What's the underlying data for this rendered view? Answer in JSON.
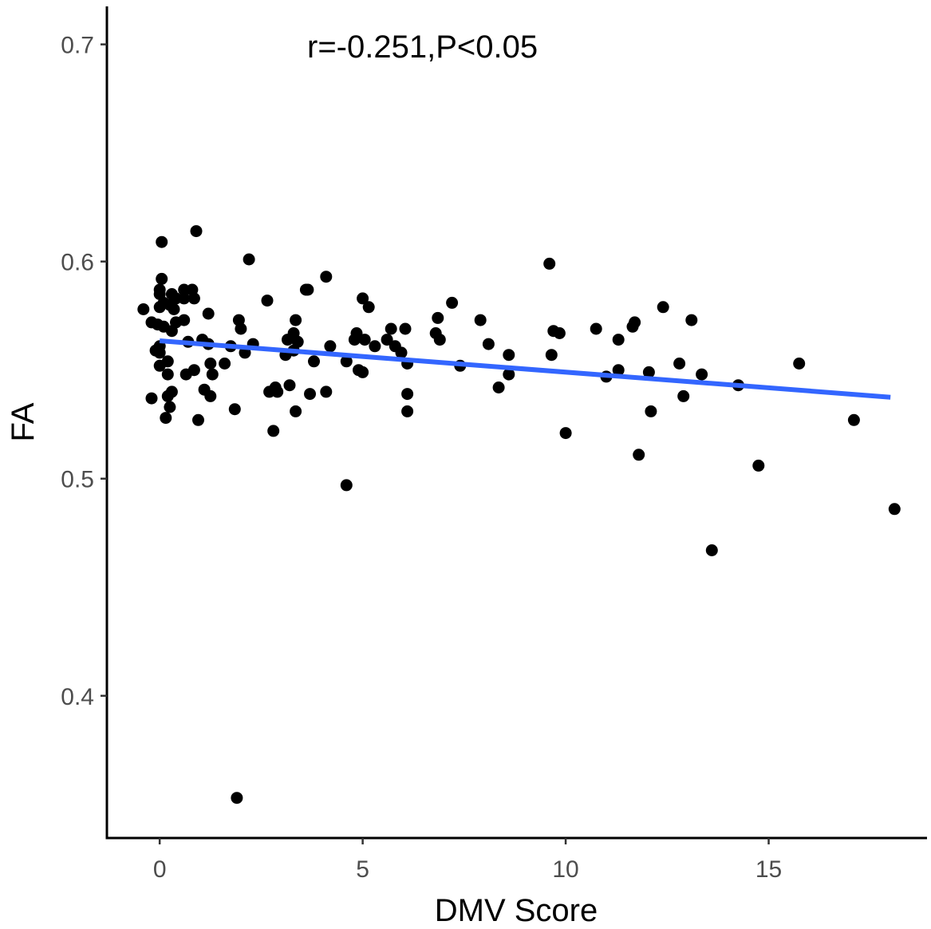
{
  "chart_data": {
    "type": "scatter",
    "xlabel": "DMV Score",
    "ylabel": "FA",
    "annotation": "r=-0.251,P<0.05",
    "xlim": [
      -1.3,
      18.9
    ],
    "ylim": [
      0.3345,
      0.7175
    ],
    "x_ticks": [
      0,
      5,
      10,
      15
    ],
    "x_tick_labels": [
      "0",
      "5",
      "10",
      "15"
    ],
    "y_ticks": [
      0.4,
      0.5,
      0.6,
      0.7
    ],
    "y_tick_labels": [
      "0.4",
      "0.5",
      "0.6",
      "0.7"
    ],
    "grid": false,
    "colors": {
      "points": "#000000",
      "fit_line": "#3366FF",
      "axis": "#000000",
      "tick_label": "#4d4d4d"
    },
    "fit_line": {
      "x": [
        0,
        18
      ],
      "y": [
        0.5635,
        0.5375
      ]
    },
    "points": [
      [
        -0.4,
        0.578
      ],
      [
        -0.2,
        0.572
      ],
      [
        -0.1,
        0.559
      ],
      [
        -0.2,
        0.537
      ],
      [
        -0.05,
        0.571
      ],
      [
        0.0,
        0.558
      ],
      [
        0.0,
        0.552
      ],
      [
        0.0,
        0.561
      ],
      [
        0.0,
        0.579
      ],
      [
        0.0,
        0.585
      ],
      [
        0.0,
        0.587
      ],
      [
        0.05,
        0.609
      ],
      [
        0.05,
        0.592
      ],
      [
        0.1,
        0.57
      ],
      [
        0.1,
        0.581
      ],
      [
        0.15,
        0.528
      ],
      [
        0.2,
        0.538
      ],
      [
        0.2,
        0.554
      ],
      [
        0.2,
        0.548
      ],
      [
        0.25,
        0.58
      ],
      [
        0.25,
        0.533
      ],
      [
        0.3,
        0.568
      ],
      [
        0.3,
        0.585
      ],
      [
        0.3,
        0.54
      ],
      [
        0.35,
        0.578
      ],
      [
        0.4,
        0.572
      ],
      [
        0.4,
        0.583
      ],
      [
        0.6,
        0.583
      ],
      [
        0.6,
        0.587
      ],
      [
        0.6,
        0.573
      ],
      [
        0.65,
        0.548
      ],
      [
        0.7,
        0.563
      ],
      [
        0.8,
        0.587
      ],
      [
        0.85,
        0.55
      ],
      [
        0.85,
        0.583
      ],
      [
        0.9,
        0.614
      ],
      [
        0.95,
        0.527
      ],
      [
        1.05,
        0.564
      ],
      [
        1.1,
        0.541
      ],
      [
        1.2,
        0.576
      ],
      [
        1.2,
        0.562
      ],
      [
        1.25,
        0.553
      ],
      [
        1.25,
        0.538
      ],
      [
        1.3,
        0.548
      ],
      [
        1.6,
        0.553
      ],
      [
        1.75,
        0.561
      ],
      [
        1.85,
        0.532
      ],
      [
        1.9,
        0.353
      ],
      [
        1.95,
        0.573
      ],
      [
        2.0,
        0.569
      ],
      [
        2.1,
        0.558
      ],
      [
        2.2,
        0.601
      ],
      [
        2.3,
        0.562
      ],
      [
        2.65,
        0.582
      ],
      [
        2.7,
        0.54
      ],
      [
        2.8,
        0.522
      ],
      [
        2.85,
        0.542
      ],
      [
        2.9,
        0.54
      ],
      [
        3.1,
        0.557
      ],
      [
        3.15,
        0.564
      ],
      [
        3.2,
        0.543
      ],
      [
        3.3,
        0.567
      ],
      [
        3.3,
        0.559
      ],
      [
        3.35,
        0.531
      ],
      [
        3.35,
        0.573
      ],
      [
        3.4,
        0.563
      ],
      [
        3.6,
        0.587
      ],
      [
        3.65,
        0.587
      ],
      [
        3.7,
        0.539
      ],
      [
        3.8,
        0.554
      ],
      [
        4.1,
        0.593
      ],
      [
        4.1,
        0.54
      ],
      [
        4.2,
        0.561
      ],
      [
        4.6,
        0.554
      ],
      [
        4.6,
        0.497
      ],
      [
        4.8,
        0.564
      ],
      [
        4.85,
        0.567
      ],
      [
        4.9,
        0.55
      ],
      [
        5.0,
        0.549
      ],
      [
        5.0,
        0.583
      ],
      [
        5.05,
        0.564
      ],
      [
        5.15,
        0.579
      ],
      [
        5.3,
        0.561
      ],
      [
        5.6,
        0.564
      ],
      [
        5.7,
        0.569
      ],
      [
        5.8,
        0.561
      ],
      [
        5.95,
        0.558
      ],
      [
        6.05,
        0.569
      ],
      [
        6.1,
        0.553
      ],
      [
        6.1,
        0.531
      ],
      [
        6.1,
        0.539
      ],
      [
        6.8,
        0.567
      ],
      [
        6.85,
        0.574
      ],
      [
        6.9,
        0.564
      ],
      [
        7.2,
        0.581
      ],
      [
        7.4,
        0.552
      ],
      [
        7.9,
        0.573
      ],
      [
        8.1,
        0.562
      ],
      [
        8.35,
        0.542
      ],
      [
        8.6,
        0.557
      ],
      [
        8.6,
        0.548
      ],
      [
        9.6,
        0.599
      ],
      [
        9.65,
        0.557
      ],
      [
        9.7,
        0.568
      ],
      [
        9.85,
        0.567
      ],
      [
        10.0,
        0.521
      ],
      [
        10.75,
        0.569
      ],
      [
        11.0,
        0.547
      ],
      [
        11.3,
        0.564
      ],
      [
        11.3,
        0.55
      ],
      [
        11.65,
        0.57
      ],
      [
        11.7,
        0.572
      ],
      [
        11.8,
        0.511
      ],
      [
        12.05,
        0.549
      ],
      [
        12.1,
        0.531
      ],
      [
        12.4,
        0.579
      ],
      [
        12.8,
        0.553
      ],
      [
        12.9,
        0.538
      ],
      [
        13.1,
        0.573
      ],
      [
        13.35,
        0.548
      ],
      [
        13.6,
        0.467
      ],
      [
        14.25,
        0.543
      ],
      [
        14.75,
        0.506
      ],
      [
        15.75,
        0.553
      ],
      [
        17.1,
        0.527
      ],
      [
        18.1,
        0.486
      ]
    ]
  }
}
